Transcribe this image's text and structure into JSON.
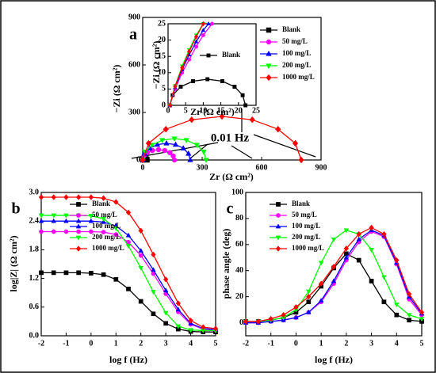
{
  "chart_data": [
    {
      "type": "line",
      "label": "a",
      "xlabel": "Zr (Ω cm²)",
      "ylabel": "−Zi (Ω cm²)",
      "xlim": [
        0,
        900
      ],
      "ylim": [
        0,
        900
      ],
      "xticks": [
        0,
        300,
        600,
        900
      ],
      "yticks": [
        0,
        300,
        600,
        900
      ],
      "legend": "upper right",
      "annotations": [
        "0.01 Hz"
      ],
      "series": [
        {
          "name": "Blank",
          "color": "#000000",
          "marker": "square",
          "x": [
            0.5,
            1.3,
            3.6,
            7.1,
            11.2,
            15.4,
            18.9,
            21.2,
            22
          ],
          "values": [
            0,
            3.1,
            5.7,
            7.4,
            8,
            7.4,
            5.7,
            3.1,
            0
          ]
        },
        {
          "name": "50 mg/L",
          "color": "#ff00ff",
          "marker": "circle",
          "x": [
            0,
            6,
            23,
            49,
            80,
            111,
            137,
            154,
            160
          ],
          "values": [
            0,
            25,
            46,
            60,
            65,
            60,
            46,
            25,
            0
          ]
        },
        {
          "name": "100 mg/L",
          "color": "#0000ff",
          "marker": "triangle",
          "x": [
            0,
            9,
            35,
            74,
            120,
            166,
            205,
            231,
            240
          ],
          "values": [
            0,
            40,
            74,
            97,
            105,
            97,
            74,
            40,
            0
          ]
        },
        {
          "name": "200 mg/L",
          "color": "#00ff00",
          "marker": "triangle-down",
          "x": [
            0,
            12,
            47,
            99,
            160,
            221,
            273,
            308,
            320
          ],
          "values": [
            0,
            52,
            95,
            125,
            135,
            125,
            95,
            52,
            0
          ]
        },
        {
          "name": "1000 mg/L",
          "color": "#ff0000",
          "marker": "diamond",
          "x": [
            0,
            30,
            117,
            247,
            400,
            553,
            683,
            770,
            800
          ],
          "values": [
            0,
            105,
            194,
            254,
            275,
            254,
            194,
            105,
            0
          ]
        }
      ]
    },
    {
      "type": "line",
      "xlabel": "Zr (Ω cm²)",
      "ylabel": "−Zi (Ω cm²)",
      "xlim": [
        0,
        25
      ],
      "ylim": [
        0,
        25
      ],
      "xticks": [
        0,
        5,
        10,
        15,
        20,
        25
      ],
      "yticks": [
        0,
        5,
        10,
        15,
        20,
        25
      ],
      "series": [
        {
          "name": "Blank",
          "color": "#000000",
          "marker": "square",
          "x": [
            0.5,
            1.3,
            3.6,
            7.1,
            11.2,
            15.4,
            18.9,
            21.2,
            22
          ],
          "values": [
            0,
            3.1,
            5.7,
            7.4,
            8,
            7.4,
            5.7,
            3.1,
            0
          ]
        },
        {
          "color": "#ff00ff",
          "marker": "circle",
          "x": [
            0.5,
            2,
            4,
            6,
            8,
            10,
            12.5
          ],
          "values": [
            0,
            5,
            10,
            14,
            18,
            21.5,
            25
          ]
        },
        {
          "color": "#0000ff",
          "marker": "triangle",
          "x": [
            0.5,
            2,
            4,
            6,
            8,
            10,
            11.5
          ],
          "values": [
            0,
            5.5,
            11,
            15.5,
            19.5,
            23,
            25
          ]
        },
        {
          "color": "#00ff00",
          "marker": "triangle-down",
          "x": [
            0.5,
            2,
            4,
            6,
            8,
            10
          ],
          "values": [
            0,
            6,
            12,
            17,
            21.5,
            25
          ]
        },
        {
          "color": "#ff0000",
          "marker": "diamond",
          "x": [
            0.5,
            2,
            4,
            6,
            8,
            10
          ],
          "values": [
            0,
            5.8,
            11.5,
            16.5,
            21,
            25
          ]
        }
      ]
    },
    {
      "type": "line",
      "label": "b",
      "xlabel": "log f (Hz)",
      "ylabel": "log|Z| (Ω cm²)",
      "xlim": [
        -2,
        5
      ],
      "ylim": [
        0,
        3.0
      ],
      "xticks": [
        -2,
        -1,
        0,
        1,
        2,
        3,
        4,
        5
      ],
      "yticks": [
        {
          "value": 0,
          "label": "0.0"
        },
        0.6,
        1.2,
        1.8,
        2.4,
        {
          "value": 3.0,
          "label": "3.0"
        }
      ],
      "legend": "upper left",
      "x": [
        -2,
        -1.5,
        -1,
        -0.5,
        0,
        0.5,
        1,
        1.5,
        2,
        2.5,
        3,
        3.5,
        4,
        4.5,
        5
      ],
      "series": [
        {
          "name": "Blank",
          "color": "#000000",
          "marker": "square",
          "values": [
            1.32,
            1.32,
            1.32,
            1.32,
            1.31,
            1.28,
            1.18,
            0.98,
            0.72,
            0.46,
            0.26,
            0.14,
            0.09,
            0.08,
            0.08
          ]
        },
        {
          "name": "50 mg/L",
          "color": "#ff00ff",
          "marker": "circle",
          "values": [
            2.18,
            2.18,
            2.18,
            2.18,
            2.18,
            2.17,
            2.12,
            1.96,
            1.68,
            1.3,
            0.88,
            0.5,
            0.24,
            0.14,
            0.12
          ]
        },
        {
          "name": "100 mg/L",
          "color": "#0000ff",
          "marker": "triangle",
          "values": [
            2.4,
            2.4,
            2.4,
            2.4,
            2.4,
            2.38,
            2.3,
            2.1,
            1.78,
            1.38,
            0.95,
            0.55,
            0.26,
            0.15,
            0.13
          ]
        },
        {
          "name": "200 mg/L",
          "color": "#00ff00",
          "marker": "triangle-down",
          "values": [
            2.52,
            2.52,
            2.52,
            2.52,
            2.51,
            2.45,
            2.25,
            1.88,
            1.42,
            0.92,
            0.48,
            0.2,
            0.12,
            0.11,
            0.11
          ]
        },
        {
          "name": "1000 mg/L",
          "color": "#ff0000",
          "marker": "diamond",
          "values": [
            2.9,
            2.9,
            2.9,
            2.9,
            2.9,
            2.88,
            2.8,
            2.58,
            2.2,
            1.7,
            1.18,
            0.68,
            0.32,
            0.18,
            0.15
          ]
        }
      ]
    },
    {
      "type": "line",
      "label": "c",
      "xlabel": "log f (Hz)",
      "ylabel": "phase angle (deg)",
      "xlim": [
        -2,
        5
      ],
      "ylim": [
        -10,
        100
      ],
      "xticks": [
        -2,
        -1,
        0,
        1,
        2,
        3,
        4,
        5
      ],
      "yticks": [
        0,
        20,
        40,
        60,
        80,
        100
      ],
      "legend": "upper left",
      "x": [
        -2,
        -1.5,
        -1,
        -0.5,
        0,
        0.5,
        1,
        1.5,
        2,
        2.5,
        3,
        3.5,
        4,
        4.5,
        5
      ],
      "series": [
        {
          "name": "Blank",
          "color": "#000000",
          "marker": "square",
          "values": [
            1,
            1,
            2,
            4,
            8,
            16,
            28,
            42,
            53,
            48,
            32,
            16,
            6,
            2,
            1
          ]
        },
        {
          "name": "50 mg/L",
          "color": "#ff00ff",
          "marker": "circle",
          "values": [
            0,
            0,
            1,
            2,
            4,
            8,
            16,
            30,
            48,
            62,
            70,
            66,
            45,
            18,
            6
          ]
        },
        {
          "name": "100 mg/L",
          "color": "#0000ff",
          "marker": "triangle",
          "values": [
            0,
            0,
            1,
            2,
            4,
            8,
            17,
            32,
            50,
            64,
            71,
            67,
            46,
            20,
            7
          ]
        },
        {
          "name": "200 mg/L",
          "color": "#00ff00",
          "marker": "triangle-down",
          "values": [
            1,
            1,
            2,
            4,
            10,
            24,
            46,
            64,
            71,
            68,
            56,
            35,
            14,
            6,
            3
          ]
        },
        {
          "name": "1000 mg/L",
          "color": "#ff0000",
          "marker": "diamond",
          "values": [
            1,
            1,
            3,
            6,
            12,
            20,
            30,
            43,
            57,
            68,
            73,
            68,
            48,
            22,
            8
          ]
        }
      ]
    }
  ]
}
